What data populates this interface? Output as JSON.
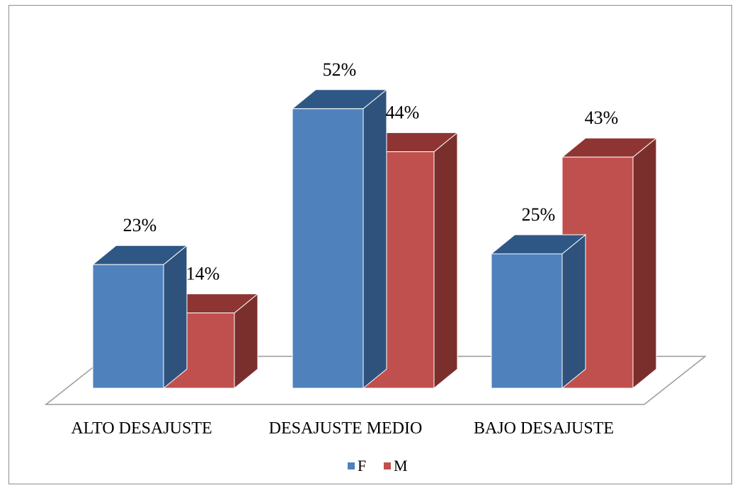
{
  "chart_data": {
    "type": "bar",
    "style": "3d-clustered-column",
    "title": "",
    "xlabel": "",
    "ylabel": "",
    "categories": [
      "ALTO DESAJUSTE",
      "DESAJUSTE MEDIO",
      "BAJO DESAJUSTE"
    ],
    "series": [
      {
        "name": "F",
        "values": [
          23,
          52,
          25
        ],
        "labels": [
          "23%",
          "52%",
          "25%"
        ],
        "color": "#4F81BD"
      },
      {
        "name": "M",
        "values": [
          14,
          44,
          43
        ],
        "labels": [
          "14%",
          "44%",
          "43%"
        ],
        "color": "#C0504D"
      }
    ],
    "unit": "%",
    "ylim": [
      0,
      60
    ],
    "grid": false,
    "legend": "bottom-center"
  }
}
